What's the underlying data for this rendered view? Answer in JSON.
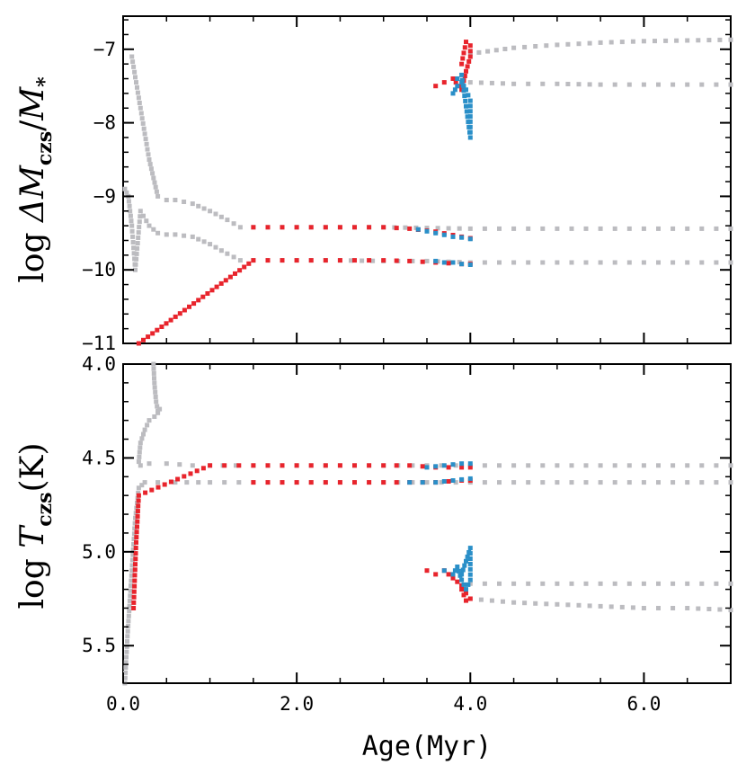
{
  "colors": {
    "gray": "#bcbcc0",
    "red": "#e8242c",
    "blue": "#2a8fc8",
    "axis": "#000000"
  },
  "chart_data": [
    {
      "type": "scatter",
      "panel": "top",
      "xlabel": "Age(Myr)",
      "ylabel": {
        "prefix": "log ",
        "italic1": "ΔM",
        "sub1": "czs",
        "mid": "/",
        "italic2": "M",
        "sub2": "*"
      },
      "xlim": [
        0,
        7
      ],
      "ylim": [
        -6.55,
        -11
      ],
      "y_inverted": true,
      "yticks": [
        -11,
        -10,
        -9,
        -8,
        -7
      ],
      "ytick_labels": [
        "−11",
        "−10",
        "−9",
        "−8",
        "−7"
      ],
      "series": [
        {
          "color": "gray",
          "tracks": [
            {
              "x": [
                0.02,
                0.06,
                0.1,
                0.14,
                0.2,
                0.3,
                0.4,
                0.5,
                0.6,
                0.8,
                1.0,
                1.2,
                1.35,
                1.5,
                2.0,
                2.5,
                3.0,
                3.5,
                4.0,
                4.5,
                5.0,
                5.5,
                6.0,
                6.5,
                7.0
              ],
              "y": [
                -8.9,
                -9.0,
                -9.4,
                -10.0,
                -9.2,
                -9.4,
                -9.5,
                -9.52,
                -9.52,
                -9.55,
                -9.65,
                -9.78,
                -9.87,
                -9.87,
                -9.87,
                -9.87,
                -9.88,
                -9.88,
                -9.9,
                -9.9,
                -9.9,
                -9.9,
                -9.9,
                -9.9,
                -9.9
              ]
            },
            {
              "x": [
                0.1,
                0.2,
                0.3,
                0.4,
                0.5,
                0.6,
                0.8,
                1.0,
                1.2,
                1.35,
                1.5,
                2.0,
                2.5,
                3.0,
                3.5,
                4.0,
                4.5,
                5.0,
                5.5,
                6.0,
                6.5,
                7.0
              ],
              "y": [
                -7.1,
                -7.8,
                -8.5,
                -9.0,
                -9.05,
                -9.05,
                -9.1,
                -9.2,
                -9.32,
                -9.42,
                -9.42,
                -9.42,
                -9.42,
                -9.42,
                -9.43,
                -9.44,
                -9.44,
                -9.44,
                -9.44,
                -9.44,
                -9.44,
                -9.44
              ]
            },
            {
              "x": [
                4.0,
                4.5,
                5.0,
                5.5,
                6.0,
                6.5,
                7.0
              ],
              "y": [
                -7.45,
                -7.47,
                -7.47,
                -7.48,
                -7.48,
                -7.48,
                -7.48
              ]
            },
            {
              "x": [
                4.0,
                4.5,
                5.0,
                5.5,
                6.0,
                6.5,
                7.0
              ],
              "y": [
                -7.06,
                -6.98,
                -6.94,
                -6.91,
                -6.89,
                -6.88,
                -6.87
              ]
            }
          ]
        },
        {
          "color": "red",
          "tracks": [
            {
              "x": [
                0.18,
                1.5,
                2.0,
                2.5,
                3.0,
                3.3,
                3.6,
                3.9,
                4.0
              ],
              "y": [
                -11.0,
                -9.87,
                -9.87,
                -9.87,
                -9.87,
                -9.88,
                -9.9,
                -9.92,
                -9.92
              ]
            },
            {
              "x": [
                1.5,
                2.0,
                2.5,
                3.0,
                3.3,
                3.6,
                3.9,
                4.0
              ],
              "y": [
                -9.42,
                -9.42,
                -9.42,
                -9.42,
                -9.44,
                -9.48,
                -9.55,
                -9.57
              ]
            },
            {
              "x": [
                3.6,
                3.7,
                3.8,
                3.9,
                3.95,
                4.0,
                4.0,
                3.95,
                3.9
              ],
              "y": [
                -7.5,
                -7.45,
                -7.4,
                -7.55,
                -7.3,
                -7.1,
                -6.95,
                -6.9,
                -7.2
              ]
            }
          ]
        },
        {
          "color": "blue",
          "tracks": [
            {
              "x": [
                3.6,
                3.7,
                3.8,
                3.9,
                4.0
              ],
              "y": [
                -9.88,
                -9.9,
                -9.9,
                -9.92,
                -9.93
              ]
            },
            {
              "x": [
                3.4,
                3.6,
                3.8,
                3.9,
                4.0
              ],
              "y": [
                -9.45,
                -9.5,
                -9.55,
                -9.56,
                -9.58
              ]
            },
            {
              "x": [
                3.8,
                3.85,
                3.9,
                3.95,
                4.0,
                4.0,
                3.9,
                3.85
              ],
              "y": [
                -7.6,
                -7.5,
                -7.45,
                -7.55,
                -7.7,
                -8.2,
                -7.35,
                -7.4
              ]
            }
          ]
        }
      ]
    },
    {
      "type": "scatter",
      "panel": "bottom",
      "xlabel": "Age(Myr)",
      "ylabel": {
        "prefix": "log ",
        "italic1": "T",
        "sub1": "czs",
        "suffix": "(K)"
      },
      "xlim": [
        0,
        7
      ],
      "ylim": [
        4.0,
        5.7
      ],
      "yticks": [
        4.0,
        4.5,
        5.0,
        5.5
      ],
      "ytick_labels": [
        "4.0",
        "4.5",
        "5.0",
        "5.5"
      ],
      "xticks": [
        0,
        2,
        4,
        6
      ],
      "xtick_labels": [
        "0.0",
        "2.0",
        "4.0",
        "6.0"
      ],
      "series": [
        {
          "color": "gray",
          "tracks": [
            {
              "x": [
                0.35,
                0.36,
                0.38,
                0.4,
                0.42,
                0.4,
                0.36,
                0.3,
                0.25,
                0.2,
                0.18,
                0.2,
                0.3,
                0.5,
                0.8,
                1.0,
                1.3,
                1.5,
                2.0,
                2.5,
                3.0,
                3.5,
                4.0,
                4.5,
                5.0,
                5.5,
                6.0,
                6.5,
                7.0
              ],
              "y": [
                4.0,
                4.1,
                4.2,
                4.25,
                4.24,
                4.26,
                4.28,
                4.3,
                4.35,
                4.42,
                4.52,
                4.54,
                4.53,
                4.53,
                4.54,
                4.54,
                4.54,
                4.54,
                4.54,
                4.54,
                4.54,
                4.54,
                4.54,
                4.54,
                4.54,
                4.54,
                4.54,
                4.54,
                4.54
              ]
            },
            {
              "x": [
                0.02,
                0.05,
                0.1,
                0.14,
                0.18,
                0.25,
                0.4,
                0.6,
                1.0,
                1.5,
                2.0,
                2.5,
                3.0,
                3.5,
                4.0,
                4.5,
                5.0,
                5.5,
                6.0,
                6.5,
                7.0
              ],
              "y": [
                5.7,
                5.45,
                5.1,
                4.82,
                4.66,
                4.63,
                4.63,
                4.63,
                4.63,
                4.63,
                4.63,
                4.63,
                4.63,
                4.63,
                4.63,
                4.63,
                4.63,
                4.63,
                4.63,
                4.63,
                4.63
              ]
            },
            {
              "x": [
                4.0,
                4.5,
                5.0,
                5.5,
                6.0,
                6.5,
                7.0
              ],
              "y": [
                5.17,
                5.17,
                5.17,
                5.17,
                5.17,
                5.17,
                5.17
              ]
            },
            {
              "x": [
                4.0,
                4.5,
                5.0,
                5.5,
                6.0,
                6.5,
                7.0
              ],
              "y": [
                5.25,
                5.27,
                5.28,
                5.29,
                5.3,
                5.3,
                5.31
              ]
            }
          ]
        },
        {
          "color": "red",
          "tracks": [
            {
              "x": [
                0.12,
                0.15,
                0.18,
                1.0,
                1.5,
                2.0,
                2.5,
                3.0,
                3.3,
                3.6,
                3.9,
                4.0
              ],
              "y": [
                5.3,
                4.95,
                4.7,
                4.54,
                4.54,
                4.54,
                4.54,
                4.54,
                4.54,
                4.55,
                4.55,
                4.55
              ]
            },
            {
              "x": [
                1.5,
                2.0,
                2.5,
                3.0,
                3.3,
                3.6,
                3.9,
                4.0
              ],
              "y": [
                4.63,
                4.63,
                4.63,
                4.63,
                4.63,
                4.63,
                4.62,
                4.62
              ]
            },
            {
              "x": [
                3.5,
                3.6,
                3.7,
                3.8,
                3.9,
                3.95,
                4.0,
                3.95,
                3.9
              ],
              "y": [
                5.1,
                5.12,
                5.1,
                5.14,
                5.18,
                5.22,
                5.25,
                5.26,
                5.2
              ]
            }
          ]
        },
        {
          "color": "blue",
          "tracks": [
            {
              "x": [
                3.5,
                3.7,
                3.9,
                4.0
              ],
              "y": [
                4.55,
                4.54,
                4.53,
                4.53
              ]
            },
            {
              "x": [
                3.3,
                3.6,
                3.8,
                4.0
              ],
              "y": [
                4.63,
                4.63,
                4.62,
                4.61
              ]
            },
            {
              "x": [
                3.7,
                3.8,
                3.85,
                3.9,
                3.95,
                4.0,
                4.0,
                3.9
              ],
              "y": [
                5.1,
                5.12,
                5.08,
                5.15,
                5.2,
                5.15,
                4.98,
                5.12
              ]
            }
          ]
        }
      ]
    }
  ]
}
